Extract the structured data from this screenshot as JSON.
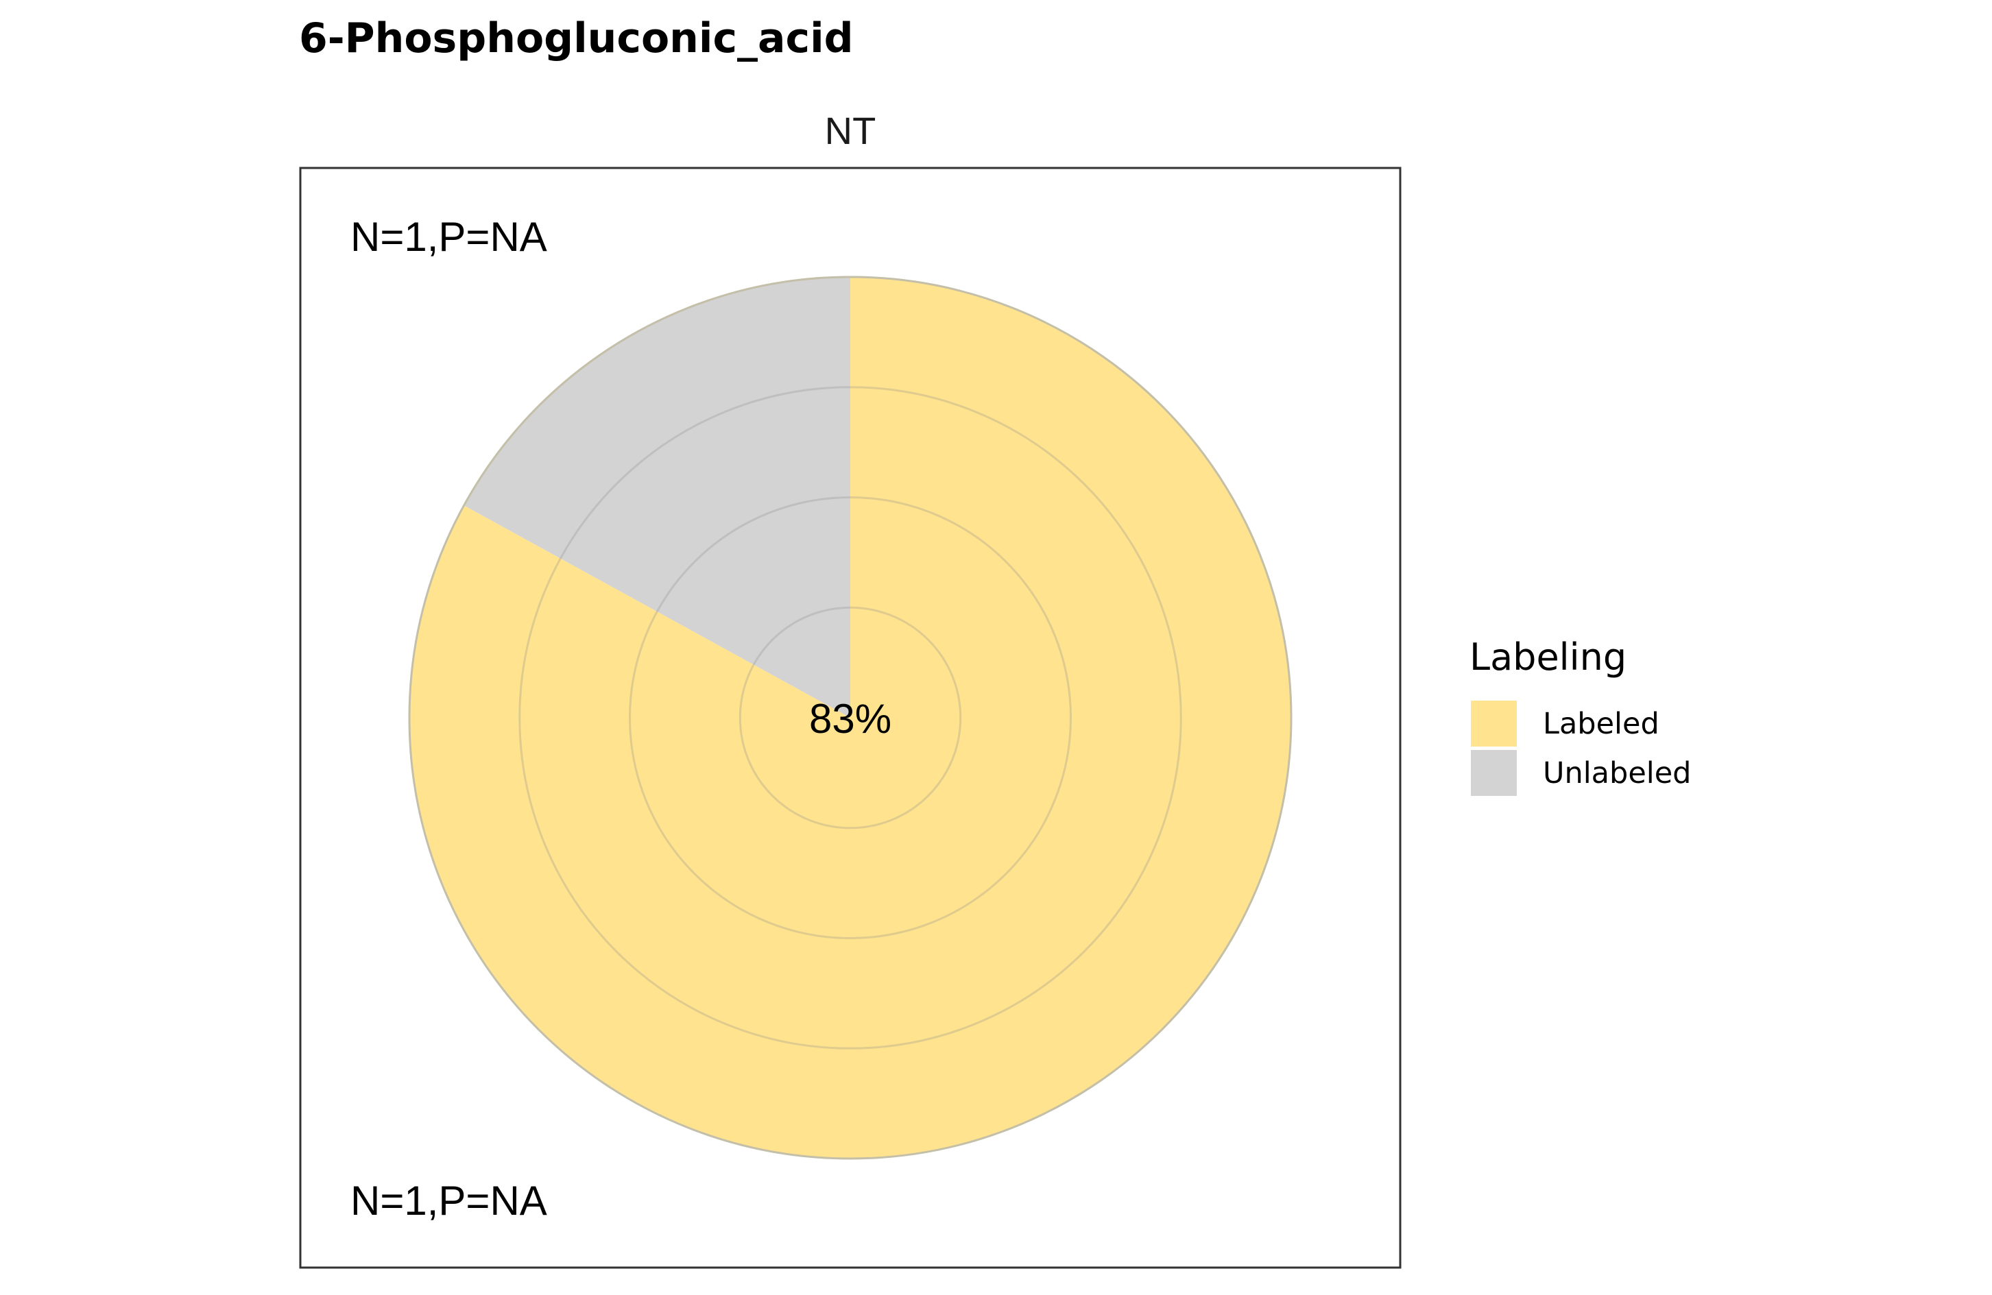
{
  "chart_data": {
    "type": "pie",
    "title": "6-Phosphogluconic_acid",
    "facet_label": "NT",
    "annotation_top": "N=1,P=NA",
    "annotation_bottom": "N=1,P=NA",
    "center_label": "83%",
    "slices": [
      {
        "name": "Labeled",
        "value": 83,
        "color": "#FFE38F"
      },
      {
        "name": "Unlabeled",
        "value": 17,
        "color": "#D3D3D3"
      }
    ],
    "radial_grid": "on",
    "legend": {
      "title": "Labeling",
      "position": "right",
      "entries": [
        {
          "label": "Labeled",
          "color": "#FFE38F"
        },
        {
          "label": "Unlabeled",
          "color": "#D3D3D3"
        }
      ]
    }
  }
}
